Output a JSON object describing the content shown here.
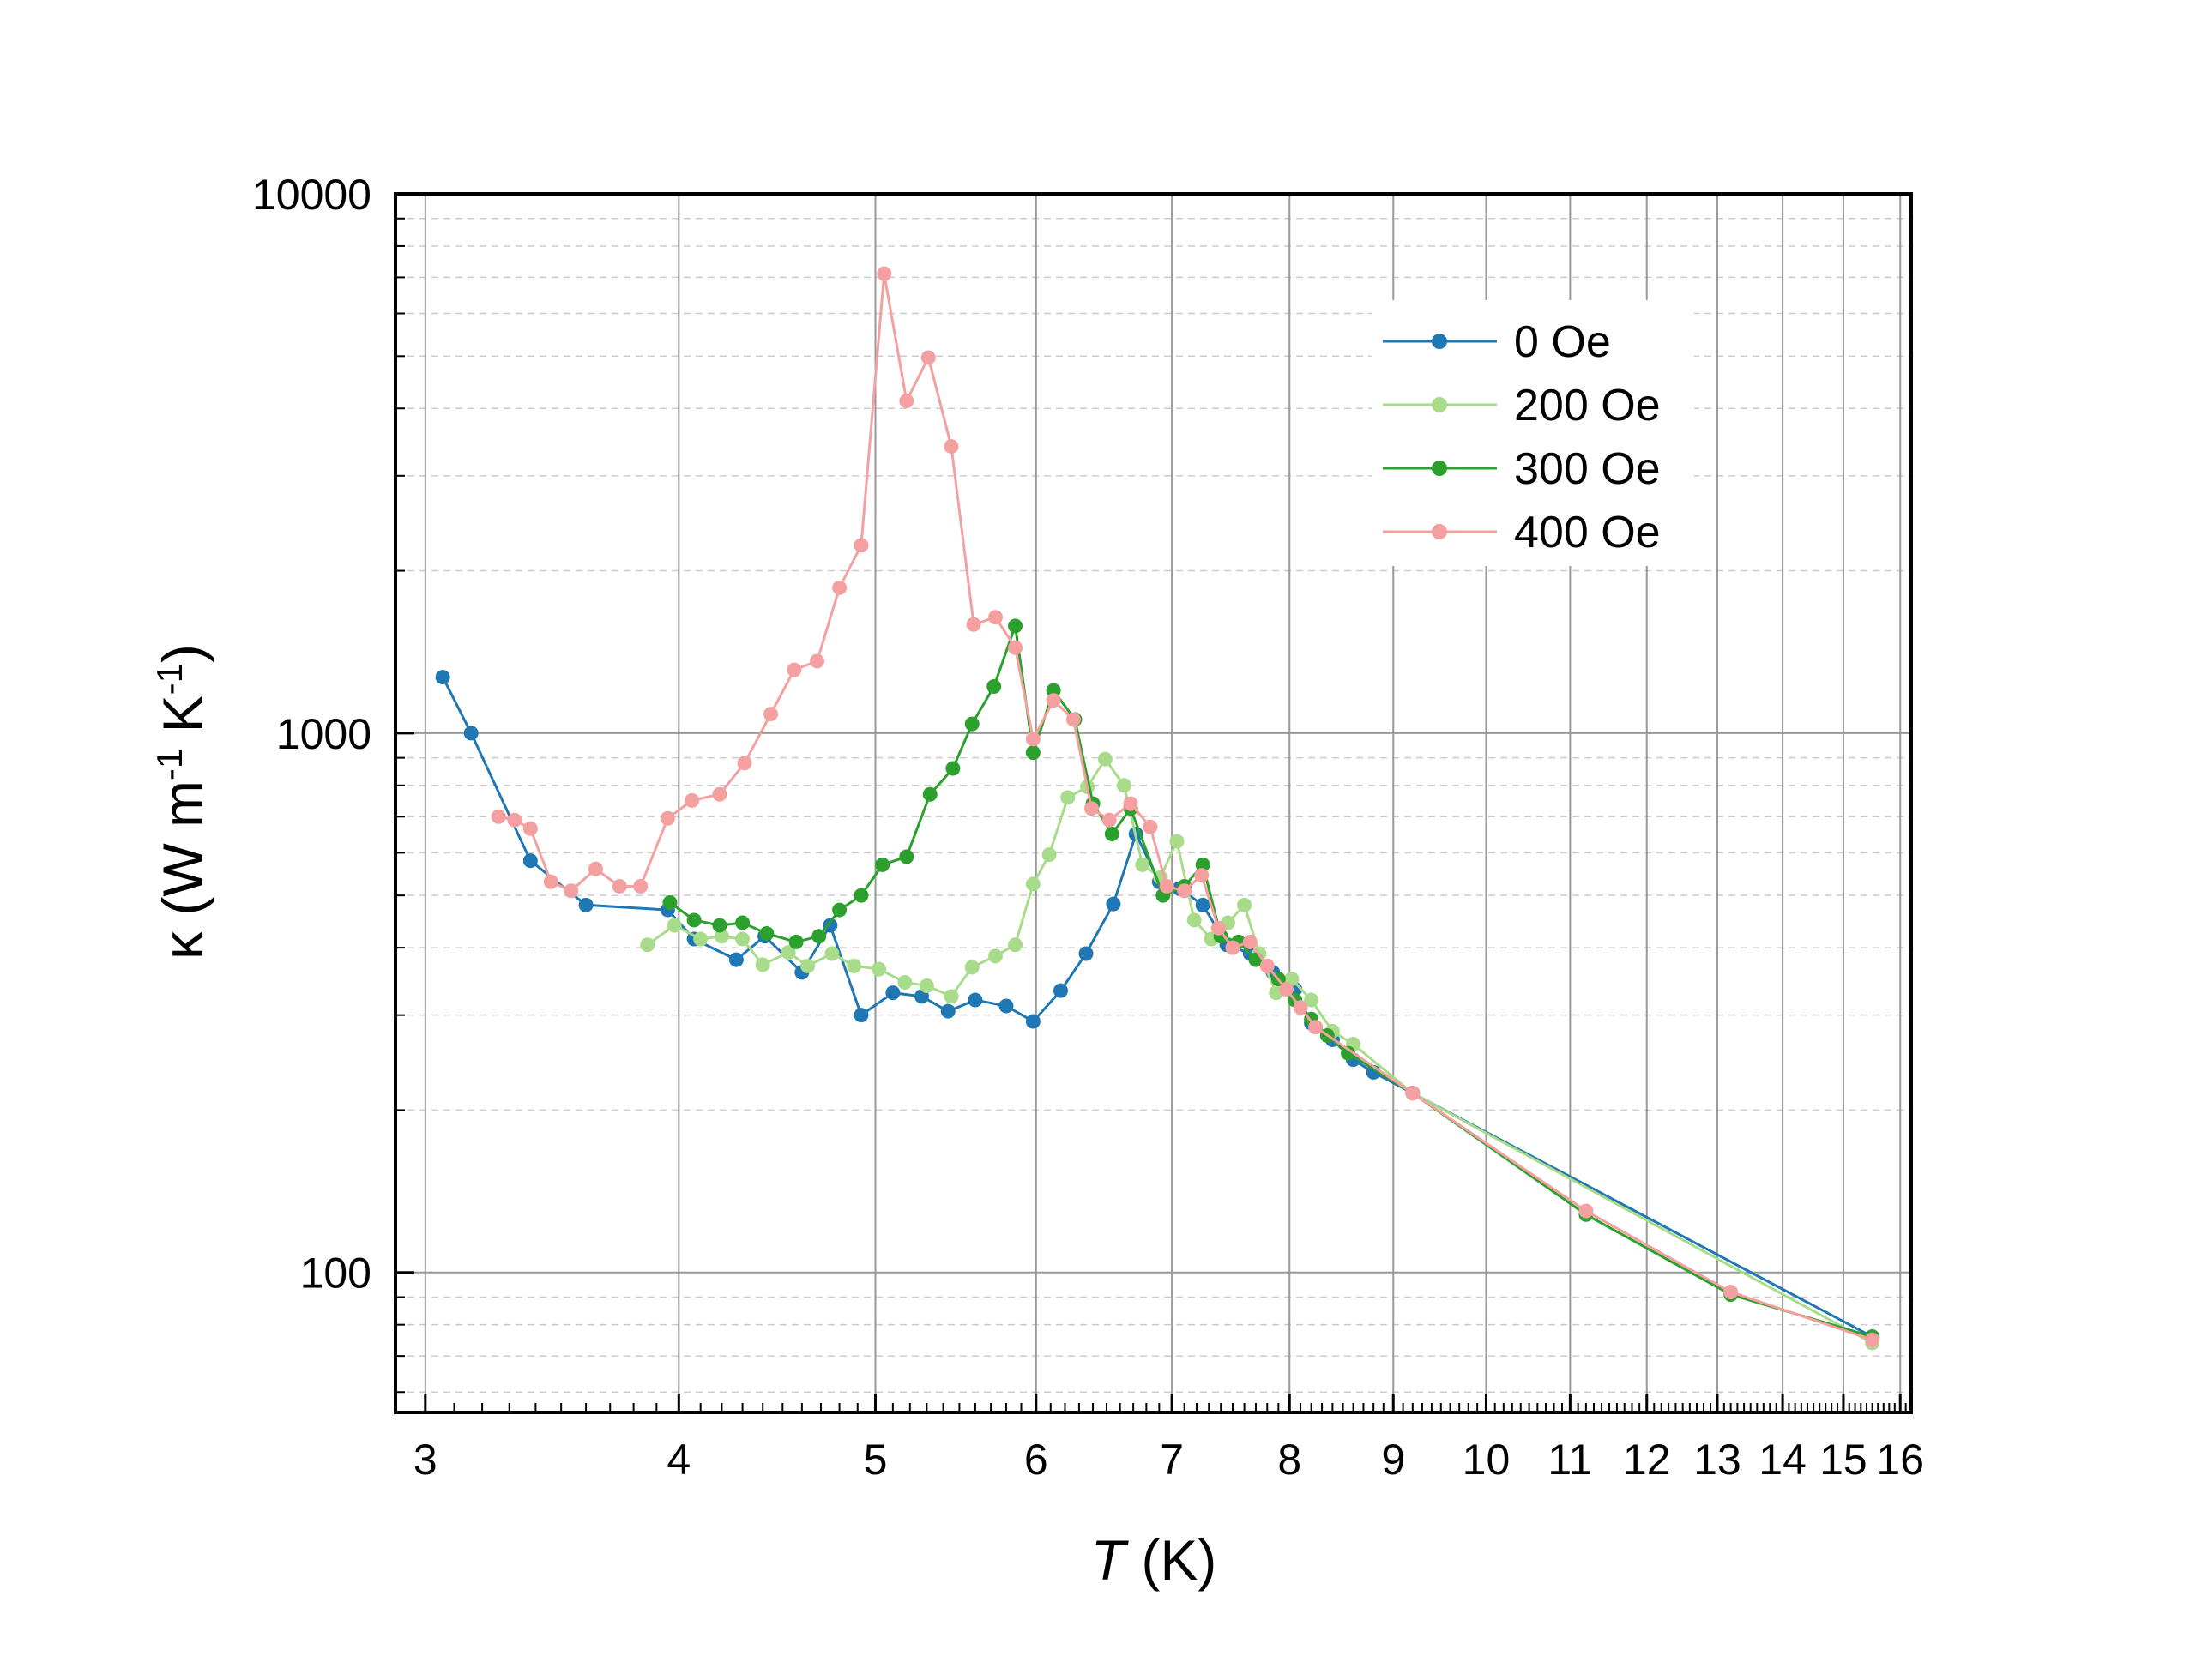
{
  "chart_data": {
    "type": "line",
    "title": "",
    "xlabel_italic": "T",
    "xlabel_rest": " (K)",
    "ylabel_parts": [
      "κ (W m",
      "-1",
      " K",
      "-1",
      ")"
    ],
    "x_scale": "log",
    "y_scale": "log",
    "xlim": [
      2.9,
      16.2
    ],
    "ylim": [
      55,
      10000
    ],
    "x_ticks": [
      3,
      4,
      5,
      6,
      7,
      8,
      9,
      10,
      11,
      12,
      13,
      14,
      15,
      16
    ],
    "x_tick_labels": [
      "3",
      "4",
      "5",
      "6",
      "7",
      "8",
      "9",
      "10",
      "11",
      "12",
      "13",
      "14",
      "15",
      "16"
    ],
    "y_ticks": [
      100,
      1000,
      10000
    ],
    "y_tick_labels": [
      "100",
      "1000",
      "10000"
    ],
    "grid": true,
    "legend_position": "top-right",
    "series": [
      {
        "name": "0 Oe",
        "color": "#1f77b4",
        "x": [
          3.06,
          3.16,
          3.38,
          3.6,
          3.95,
          4.07,
          4.27,
          4.41,
          4.6,
          4.75,
          4.92,
          5.1,
          5.27,
          5.43,
          5.6,
          5.8,
          5.98,
          6.17,
          6.35,
          6.55,
          6.72,
          6.9,
          7.06,
          7.25,
          7.45,
          7.65,
          7.85,
          8.05,
          8.2,
          8.4,
          8.6,
          8.8,
          9.2,
          15.5
        ],
        "y": [
          1270,
          1000,
          580,
          480,
          470,
          415,
          380,
          420,
          360,
          440,
          300,
          330,
          325,
          305,
          320,
          312,
          292,
          333,
          390,
          482,
          650,
          530,
          515,
          480,
          405,
          390,
          360,
          335,
          290,
          270,
          248,
          235,
          215,
          76
        ]
      },
      {
        "name": "200 Oe",
        "color": "#a9dc8a",
        "x": [
          3.86,
          3.98,
          4.1,
          4.2,
          4.3,
          4.4,
          4.53,
          4.63,
          4.76,
          4.88,
          5.02,
          5.17,
          5.3,
          5.45,
          5.58,
          5.73,
          5.86,
          5.98,
          6.09,
          6.22,
          6.36,
          6.49,
          6.63,
          6.77,
          6.91,
          7.04,
          7.18,
          7.32,
          7.46,
          7.6,
          7.73,
          7.88,
          8.02,
          8.2,
          8.4,
          8.6,
          9.2,
          15.5
        ],
        "y": [
          405,
          440,
          415,
          420,
          415,
          372,
          392,
          370,
          390,
          370,
          365,
          345,
          340,
          325,
          368,
          386,
          405,
          525,
          595,
          760,
          795,
          895,
          800,
          570,
          540,
          630,
          450,
          415,
          445,
          480,
          390,
          330,
          350,
          320,
          280,
          265,
          215,
          74
        ]
      },
      {
        "name": "300 Oe",
        "color": "#2ca02c",
        "x": [
          3.96,
          4.07,
          4.19,
          4.3,
          4.42,
          4.57,
          4.69,
          4.8,
          4.92,
          5.04,
          5.18,
          5.32,
          5.46,
          5.58,
          5.72,
          5.86,
          5.98,
          6.12,
          6.27,
          6.4,
          6.54,
          6.68,
          6.93,
          7.1,
          7.25,
          7.4,
          7.55,
          7.7,
          7.9,
          8.05,
          8.2,
          8.35,
          8.55,
          9.2,
          11.2,
          13.2,
          15.5
        ],
        "y": [
          485,
          450,
          440,
          445,
          425,
          410,
          420,
          470,
          500,
          570,
          590,
          770,
          860,
          1040,
          1220,
          1580,
          920,
          1200,
          1060,
          740,
          650,
          725,
          500,
          520,
          570,
          420,
          410,
          380,
          350,
          320,
          295,
          275,
          255,
          215,
          128,
          91,
          76
        ]
      },
      {
        "name": "400 Oe",
        "color": "#f4a0a0",
        "x": [
          3.26,
          3.32,
          3.38,
          3.46,
          3.54,
          3.64,
          3.74,
          3.83,
          3.95,
          4.06,
          4.19,
          4.31,
          4.44,
          4.56,
          4.68,
          4.8,
          4.92,
          5.05,
          5.18,
          5.31,
          5.45,
          5.59,
          5.73,
          5.86,
          5.98,
          6.12,
          6.26,
          6.39,
          6.52,
          6.68,
          6.83,
          6.96,
          7.1,
          7.24,
          7.38,
          7.5,
          7.65,
          7.8,
          7.97,
          8.1,
          8.24,
          9.2,
          11.2,
          13.2,
          15.5
        ],
        "y": [
          700,
          690,
          665,
          530,
          510,
          560,
          520,
          520,
          695,
          750,
          770,
          880,
          1085,
          1310,
          1360,
          1860,
          2230,
          7110,
          4130,
          4970,
          3400,
          1590,
          1640,
          1440,
          975,
          1150,
          1060,
          725,
          690,
          740,
          670,
          520,
          510,
          545,
          435,
          400,
          410,
          370,
          335,
          310,
          285,
          215,
          130,
          92,
          75
        ]
      }
    ]
  }
}
